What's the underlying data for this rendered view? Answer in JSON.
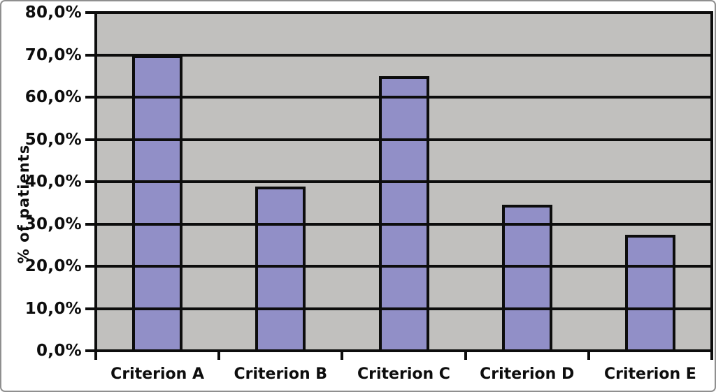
{
  "window": {
    "background_color": "#ffffff",
    "outer_border_color": "#8f8f8f"
  },
  "chart_data": {
    "type": "bar",
    "title": "",
    "categories": [
      "Criterion A",
      "Criterion B",
      "Criterion C",
      "Criterion D",
      "Criterion E"
    ],
    "values": [
      70.0,
      38.8,
      64.9,
      34.5,
      27.5
    ],
    "series": [
      {
        "name": "% of patients",
        "values": [
          70.0,
          38.8,
          64.9,
          34.5,
          27.5
        ]
      }
    ],
    "xlabel": "",
    "ylabel": "% of patients",
    "ylim": [
      0,
      80
    ],
    "ytick_values": [
      0,
      10,
      20,
      30,
      40,
      50,
      60,
      70,
      80
    ],
    "ytick_labels": [
      "0,0%",
      "10,0%",
      "20,0%",
      "30,0%",
      "40,0%",
      "50,0%",
      "60,0%",
      "70,0%",
      "80,0%"
    ],
    "grid": true,
    "gridlines_over_bars": true,
    "legend_position": "none",
    "colors": {
      "bar_fill": "#918fc7",
      "bar_border": "#0d0d0d",
      "plot_background": "#c1c0be",
      "gridline": "#0d0d0d",
      "axis": "#0d0d0d",
      "text": "#0d0d0d"
    }
  }
}
